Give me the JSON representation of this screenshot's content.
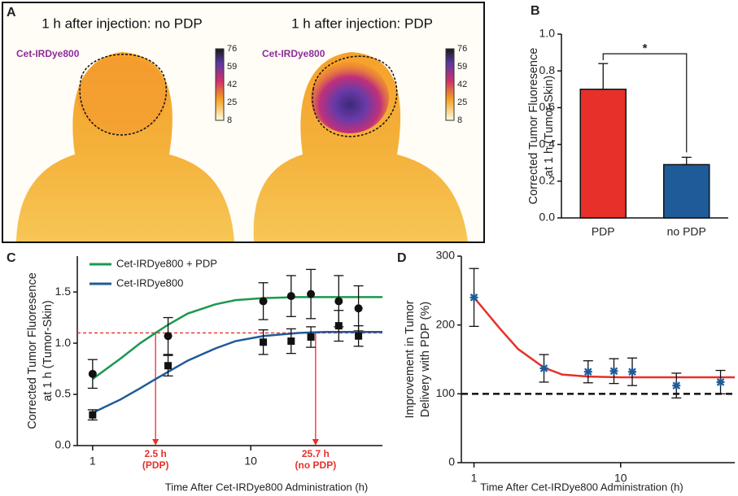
{
  "images": {
    "panel_label": "A",
    "panels": [
      {
        "title": "1 h after injection: no PDP",
        "probe": "Cet-IRDye800"
      },
      {
        "title": "1 h after injection: PDP",
        "probe": "Cet-IRDye800"
      }
    ],
    "colorbar_ticks": [
      76,
      59,
      42,
      25,
      8
    ]
  },
  "chart_data": [
    {
      "type": "bar",
      "panel_label": "B",
      "y_label": [
        "Corrected Tumor Fluoresence",
        "at 1 h (Tumor-Skin)"
      ],
      "categories": [
        "PDP",
        "no PDP"
      ],
      "values": [
        0.7,
        0.29
      ],
      "errors": [
        0.14,
        0.04
      ],
      "colors": [
        "#e8302a",
        "#1f5b99"
      ],
      "ylim": [
        0,
        1.0
      ],
      "yticks": [
        {
          "value": 0,
          "label": "0.0"
        },
        0.2,
        0.4,
        0.6,
        0.8,
        {
          "value": 1,
          "label": "1.0"
        }
      ],
      "significance": "*"
    },
    {
      "type": "line",
      "panel_label": "C",
      "x_scale": "log",
      "legend": "upper left",
      "x_label": "Time After Cet-IRDye800 Administration (h)",
      "y_label": [
        "Corrected Tumor Fluoresence",
        "at 1 h (Tumor-Skin)"
      ],
      "xlim": [
        0.8,
        68
      ],
      "xticks": [
        1,
        10
      ],
      "ylim": [
        0,
        1.85
      ],
      "yticks": [
        {
          "value": 0,
          "label": "0.0"
        },
        0.5,
        {
          "value": 1,
          "label": "1.0"
        },
        1.5
      ],
      "reference_y": 1.1,
      "reference_color": "#e8302a",
      "annotations": [
        {
          "x": 2.5,
          "text": [
            "2.5 h",
            "(PDP)"
          ]
        },
        {
          "x": 25.7,
          "text": [
            "25.7 h",
            "(no PDP)"
          ]
        }
      ],
      "series": [
        {
          "name": "Cet-IRDye800 + PDP",
          "color": "#1a9850",
          "marker": "circle",
          "point_color": "#111111",
          "x": [
            1,
            3,
            12,
            18,
            24,
            36,
            48
          ],
          "values": [
            0.7,
            1.07,
            1.41,
            1.46,
            1.48,
            1.41,
            1.34
          ],
          "errors": [
            0.14,
            0.18,
            0.18,
            0.2,
            0.24,
            0.25,
            0.22
          ],
          "fit_x": [
            1,
            1.5,
            2,
            2.5,
            3,
            4,
            6,
            8,
            12,
            20,
            30,
            68
          ],
          "fit_values": [
            0.65,
            0.85,
            1.0,
            1.1,
            1.18,
            1.29,
            1.38,
            1.42,
            1.44,
            1.45,
            1.45,
            1.45
          ]
        },
        {
          "name": "Cet-IRDye800",
          "color": "#1f5b99",
          "marker": "square",
          "point_color": "#111111",
          "x": [
            1,
            3,
            12,
            18,
            24,
            36,
            48
          ],
          "values": [
            0.3,
            0.78,
            1.01,
            1.02,
            1.06,
            1.17,
            1.07
          ],
          "errors": [
            0.05,
            0.1,
            0.12,
            0.12,
            0.1,
            0.15,
            0.1
          ],
          "fit_x": [
            1,
            1.5,
            2,
            2.5,
            3,
            4,
            6,
            8,
            12,
            20,
            30,
            68
          ],
          "fit_values": [
            0.32,
            0.45,
            0.56,
            0.65,
            0.72,
            0.83,
            0.95,
            1.02,
            1.07,
            1.1,
            1.11,
            1.11
          ]
        }
      ]
    },
    {
      "type": "line",
      "panel_label": "D",
      "x_scale": "log",
      "x_label": "Time After Cet-IRDye800 Administration (h)",
      "y_label": [
        "Improvement in Tumor",
        "Delivery with PDP (%)"
      ],
      "xlim": [
        0.82,
        60
      ],
      "xticks": [
        1,
        10
      ],
      "ylim": [
        0,
        300
      ],
      "yticks": [
        0,
        100,
        200,
        300
      ],
      "reference_y": 100,
      "reference_color": "#111111",
      "series": [
        {
          "color": "#e8302a",
          "marker": "star",
          "point_color": "#1f5b99",
          "x": [
            1,
            3,
            6,
            9,
            12,
            24,
            48
          ],
          "values": [
            240,
            137,
            132,
            133,
            132,
            112,
            117
          ],
          "errors": [
            42,
            20,
            16,
            18,
            20,
            18,
            17
          ],
          "fit_x": [
            1,
            1.5,
            2,
            3,
            4,
            6,
            10,
            60
          ],
          "fit_values": [
            240,
            195,
            165,
            138,
            128,
            125,
            124,
            124
          ]
        }
      ]
    }
  ]
}
